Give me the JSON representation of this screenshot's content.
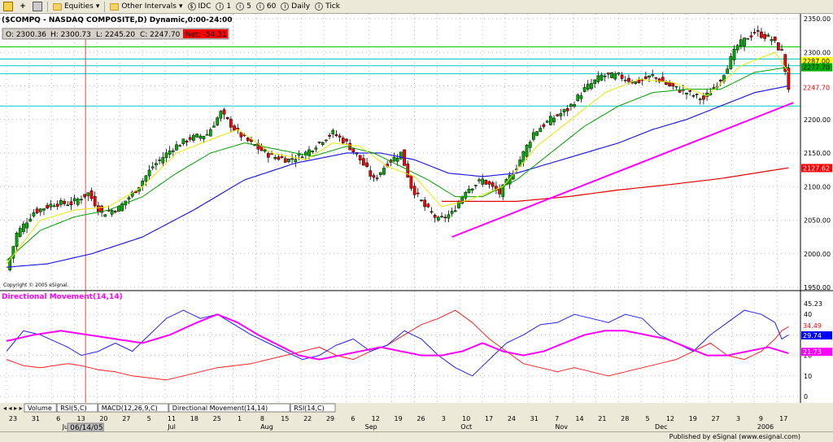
{
  "toolbar": {
    "items": [
      "Equities",
      "Other Intervals",
      "IDC",
      "1",
      "5",
      "60",
      "Daily",
      "Tick"
    ]
  },
  "chart": {
    "title": "($COMPQ - NASDAQ COMPOSITE,D) Dynamic,0:00-24:00",
    "ohlc": {
      "open": "O: 2300.36",
      "high": "H: 2300.73",
      "low": "L: 2245.20",
      "close": "C: 2247.70",
      "net": "Net: -54.31"
    },
    "copyright": "Copyright © 2005 eSignal.",
    "indicator_title": "Directional Movement(14,14)",
    "price_axis_labels": [
      "2350.00",
      "2300.00",
      "2250.00",
      "2200.00",
      "2150.00",
      "2100.00",
      "2050.00",
      "2000.00",
      "1950.00"
    ],
    "price_value_labels": [
      {
        "text": "2287.00",
        "price": 2287,
        "color": "#ffff00",
        "textColor": "#000000"
      },
      {
        "text": "2277.70",
        "price": 2277.7,
        "color": "#00b000",
        "textColor": "#000000"
      },
      {
        "text": "2247.70",
        "price": 2247.7,
        "color": "#ffffff",
        "textColor": "#ff0000"
      },
      {
        "text": "2127.62",
        "price": 2127.62,
        "color": "#ff0000",
        "textColor": "#ffffff"
      }
    ],
    "indicator_axis_labels": [
      "45.23",
      "40",
      "30",
      "20",
      "10",
      "0"
    ],
    "indicator_value_labels": [
      {
        "text": "34.49",
        "value": 34.49,
        "color": "#ffffff",
        "textColor": "#ff0000"
      },
      {
        "text": "29.74",
        "value": 29.74,
        "color": "#0000ff",
        "textColor": "#ffffff"
      },
      {
        "text": "21.73",
        "value": 21.73,
        "color": "#ff00ff",
        "textColor": "#ffffff"
      }
    ],
    "tabs": [
      "Volume",
      "RSI(5,C)",
      "MACD(12,26,9,C)",
      "Directional Movement(14,14)",
      "RSI(14,C)"
    ],
    "date_ticks": [
      "23",
      "31",
      "6",
      "13",
      "20",
      "27",
      "5",
      "11",
      "18",
      "25",
      "1",
      "8",
      "15",
      "22",
      "29",
      "6",
      "12",
      "19",
      "26",
      "3",
      "10",
      "17",
      "24",
      "31",
      "7",
      "14",
      "21",
      "28",
      "5",
      "12",
      "19",
      "27",
      "3",
      "9",
      "17"
    ],
    "month_labels": [
      "Jun",
      "Jul",
      "Aug",
      "Sep",
      "Oct",
      "Nov",
      "Dec",
      "2006"
    ],
    "cursor_date": "06/14/05",
    "status": "Published by eSignal (www.esignal.com)"
  },
  "chart_data": {
    "type": "candlestick",
    "title": "($COMPQ - NASDAQ COMPOSITE,D) Dynamic,0:00-24:00",
    "ylim": [
      1950,
      2350
    ],
    "indicator_ylim": [
      0,
      45.23
    ],
    "colors": {
      "up": "#00b000",
      "down": "#ff0000",
      "ma_fast": "#e8e800",
      "ma_mid": "#00a000",
      "ma_slow": "#2020e0",
      "ma_long": "#e00000",
      "trend": "#ff00ff",
      "plus_di": "#2020ff",
      "minus_di": "#ff2020",
      "adx": "#ff00ff"
    },
    "close_anchors": [
      [
        0,
        1975
      ],
      [
        3,
        2030
      ],
      [
        8,
        2062
      ],
      [
        14,
        2075
      ],
      [
        19,
        2075
      ],
      [
        24,
        2090
      ],
      [
        28,
        2060
      ],
      [
        33,
        2068
      ],
      [
        38,
        2095
      ],
      [
        43,
        2130
      ],
      [
        49,
        2158
      ],
      [
        54,
        2172
      ],
      [
        59,
        2178
      ],
      [
        63,
        2210
      ],
      [
        68,
        2180
      ],
      [
        73,
        2160
      ],
      [
        78,
        2145
      ],
      [
        83,
        2140
      ],
      [
        88,
        2150
      ],
      [
        93,
        2170
      ],
      [
        96,
        2180
      ],
      [
        100,
        2165
      ],
      [
        104,
        2140
      ],
      [
        108,
        2110
      ],
      [
        112,
        2135
      ],
      [
        116,
        2150
      ],
      [
        119,
        2100
      ],
      [
        123,
        2070
      ],
      [
        127,
        2050
      ],
      [
        131,
        2060
      ],
      [
        135,
        2095
      ],
      [
        140,
        2110
      ],
      [
        145,
        2090
      ],
      [
        150,
        2130
      ],
      [
        155,
        2180
      ],
      [
        160,
        2200
      ],
      [
        165,
        2215
      ],
      [
        170,
        2245
      ],
      [
        175,
        2265
      ],
      [
        180,
        2265
      ],
      [
        185,
        2255
      ],
      [
        190,
        2265
      ],
      [
        195,
        2250
      ],
      [
        200,
        2240
      ],
      [
        205,
        2230
      ],
      [
        210,
        2260
      ],
      [
        215,
        2310
      ],
      [
        220,
        2330
      ],
      [
        225,
        2320
      ],
      [
        228,
        2300
      ],
      [
        230,
        2247
      ]
    ],
    "ma_fast_anchors": [
      [
        0,
        1985
      ],
      [
        10,
        2050
      ],
      [
        20,
        2065
      ],
      [
        30,
        2070
      ],
      [
        40,
        2100
      ],
      [
        50,
        2150
      ],
      [
        60,
        2170
      ],
      [
        68,
        2185
      ],
      [
        78,
        2150
      ],
      [
        88,
        2140
      ],
      [
        96,
        2165
      ],
      [
        104,
        2160
      ],
      [
        112,
        2130
      ],
      [
        120,
        2115
      ],
      [
        128,
        2070
      ],
      [
        136,
        2080
      ],
      [
        146,
        2100
      ],
      [
        156,
        2160
      ],
      [
        166,
        2200
      ],
      [
        176,
        2240
      ],
      [
        186,
        2260
      ],
      [
        196,
        2255
      ],
      [
        206,
        2235
      ],
      [
        216,
        2280
      ],
      [
        226,
        2300
      ],
      [
        230,
        2270
      ]
    ],
    "ma_mid_anchors": [
      [
        0,
        1990
      ],
      [
        10,
        2035
      ],
      [
        20,
        2055
      ],
      [
        30,
        2065
      ],
      [
        40,
        2085
      ],
      [
        50,
        2120
      ],
      [
        60,
        2150
      ],
      [
        70,
        2165
      ],
      [
        80,
        2155
      ],
      [
        90,
        2145
      ],
      [
        100,
        2160
      ],
      [
        108,
        2150
      ],
      [
        116,
        2130
      ],
      [
        124,
        2110
      ],
      [
        132,
        2085
      ],
      [
        140,
        2085
      ],
      [
        150,
        2110
      ],
      [
        160,
        2150
      ],
      [
        170,
        2190
      ],
      [
        180,
        2220
      ],
      [
        190,
        2240
      ],
      [
        200,
        2245
      ],
      [
        210,
        2245
      ],
      [
        220,
        2270
      ],
      [
        230,
        2278
      ]
    ],
    "ma_slow_anchors": [
      [
        0,
        1980
      ],
      [
        12,
        1985
      ],
      [
        25,
        2000
      ],
      [
        40,
        2025
      ],
      [
        55,
        2065
      ],
      [
        70,
        2110
      ],
      [
        85,
        2135
      ],
      [
        100,
        2150
      ],
      [
        110,
        2150
      ],
      [
        120,
        2140
      ],
      [
        130,
        2120
      ],
      [
        140,
        2115
      ],
      [
        150,
        2120
      ],
      [
        160,
        2135
      ],
      [
        170,
        2150
      ],
      [
        180,
        2165
      ],
      [
        190,
        2185
      ],
      [
        200,
        2200
      ],
      [
        210,
        2220
      ],
      [
        220,
        2240
      ],
      [
        230,
        2250
      ]
    ],
    "ma_long_anchors": [
      [
        128,
        2078
      ],
      [
        150,
        2078
      ],
      [
        165,
        2085
      ],
      [
        180,
        2095
      ],
      [
        195,
        2103
      ],
      [
        210,
        2112
      ],
      [
        230,
        2128
      ]
    ],
    "trendline": [
      [
        131,
        2025
      ],
      [
        230,
        2225
      ]
    ],
    "horizontal_lines": [
      {
        "price": 2308,
        "color": "#00c000"
      },
      {
        "price": 2290,
        "color": "#00c8c8"
      },
      {
        "price": 2280,
        "color": "#00c8c8"
      },
      {
        "price": 2268,
        "color": "#00c8c8"
      },
      {
        "price": 2220,
        "color": "#00c8c8"
      }
    ],
    "plus_di_anchors": [
      [
        0,
        22
      ],
      [
        5,
        32
      ],
      [
        10,
        30
      ],
      [
        18,
        24
      ],
      [
        22,
        20
      ],
      [
        27,
        22
      ],
      [
        32,
        26
      ],
      [
        37,
        22
      ],
      [
        42,
        30
      ],
      [
        47,
        38
      ],
      [
        52,
        42
      ],
      [
        57,
        38
      ],
      [
        62,
        40
      ],
      [
        67,
        35
      ],
      [
        72,
        30
      ],
      [
        77,
        26
      ],
      [
        82,
        22
      ],
      [
        87,
        18
      ],
      [
        92,
        20
      ],
      [
        97,
        25
      ],
      [
        102,
        28
      ],
      [
        107,
        22
      ],
      [
        112,
        25
      ],
      [
        117,
        32
      ],
      [
        122,
        28
      ],
      [
        127,
        20
      ],
      [
        132,
        14
      ],
      [
        137,
        10
      ],
      [
        142,
        18
      ],
      [
        147,
        26
      ],
      [
        152,
        30
      ],
      [
        157,
        35
      ],
      [
        162,
        36
      ],
      [
        167,
        40
      ],
      [
        172,
        38
      ],
      [
        177,
        36
      ],
      [
        182,
        40
      ],
      [
        187,
        38
      ],
      [
        192,
        30
      ],
      [
        197,
        26
      ],
      [
        202,
        22
      ],
      [
        207,
        30
      ],
      [
        212,
        36
      ],
      [
        217,
        42
      ],
      [
        222,
        40
      ],
      [
        226,
        36
      ],
      [
        228,
        28
      ],
      [
        230,
        30
      ]
    ],
    "minus_di_anchors": [
      [
        0,
        18
      ],
      [
        5,
        15
      ],
      [
        10,
        14
      ],
      [
        18,
        16
      ],
      [
        22,
        15
      ],
      [
        27,
        13
      ],
      [
        32,
        12
      ],
      [
        37,
        10
      ],
      [
        42,
        9
      ],
      [
        47,
        8
      ],
      [
        52,
        10
      ],
      [
        57,
        12
      ],
      [
        62,
        14
      ],
      [
        67,
        15
      ],
      [
        72,
        16
      ],
      [
        77,
        18
      ],
      [
        82,
        20
      ],
      [
        87,
        22
      ],
      [
        92,
        24
      ],
      [
        97,
        20
      ],
      [
        102,
        18
      ],
      [
        107,
        22
      ],
      [
        112,
        25
      ],
      [
        117,
        30
      ],
      [
        122,
        35
      ],
      [
        127,
        38
      ],
      [
        132,
        42
      ],
      [
        137,
        36
      ],
      [
        142,
        28
      ],
      [
        147,
        22
      ],
      [
        152,
        16
      ],
      [
        157,
        14
      ],
      [
        162,
        12
      ],
      [
        167,
        14
      ],
      [
        172,
        12
      ],
      [
        177,
        10
      ],
      [
        182,
        12
      ],
      [
        187,
        14
      ],
      [
        192,
        16
      ],
      [
        197,
        18
      ],
      [
        202,
        22
      ],
      [
        207,
        26
      ],
      [
        212,
        20
      ],
      [
        217,
        18
      ],
      [
        222,
        22
      ],
      [
        226,
        28
      ],
      [
        228,
        32
      ],
      [
        230,
        34
      ]
    ],
    "adx_anchors": [
      [
        0,
        27
      ],
      [
        8,
        30
      ],
      [
        16,
        32
      ],
      [
        24,
        30
      ],
      [
        32,
        28
      ],
      [
        40,
        26
      ],
      [
        48,
        30
      ],
      [
        56,
        36
      ],
      [
        62,
        40
      ],
      [
        68,
        36
      ],
      [
        74,
        30
      ],
      [
        80,
        25
      ],
      [
        86,
        20
      ],
      [
        92,
        18
      ],
      [
        98,
        20
      ],
      [
        104,
        22
      ],
      [
        110,
        24
      ],
      [
        116,
        22
      ],
      [
        122,
        20
      ],
      [
        128,
        20
      ],
      [
        134,
        22
      ],
      [
        140,
        26
      ],
      [
        146,
        22
      ],
      [
        152,
        20
      ],
      [
        158,
        22
      ],
      [
        164,
        26
      ],
      [
        170,
        30
      ],
      [
        176,
        32
      ],
      [
        182,
        32
      ],
      [
        188,
        30
      ],
      [
        194,
        28
      ],
      [
        200,
        24
      ],
      [
        206,
        20
      ],
      [
        212,
        20
      ],
      [
        218,
        22
      ],
      [
        224,
        24
      ],
      [
        230,
        21
      ]
    ],
    "date_tick_bars": [
      0,
      5,
      10,
      15,
      20,
      25,
      30,
      35,
      40,
      45,
      50,
      55,
      60,
      65,
      70,
      75,
      80,
      85,
      90,
      95,
      100,
      105,
      110,
      115,
      120,
      125,
      130,
      135,
      140,
      145,
      150,
      155,
      160,
      165,
      170
    ],
    "month_bars": [
      12,
      35,
      56,
      79,
      100,
      121,
      143,
      166
    ],
    "cursor_bar": 16
  }
}
